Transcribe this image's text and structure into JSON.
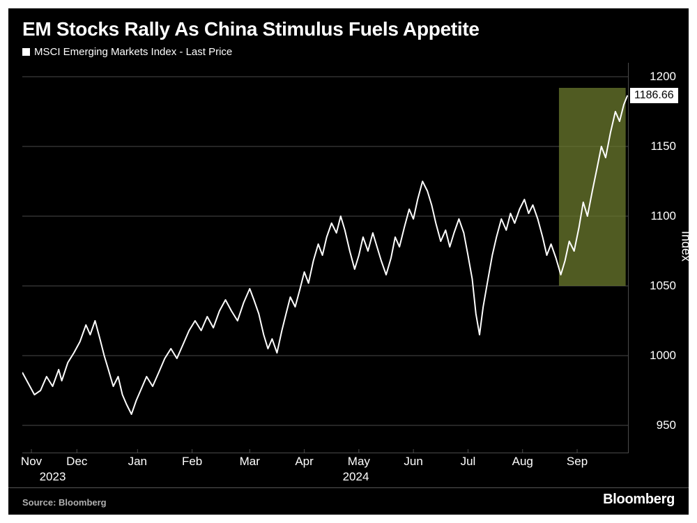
{
  "title": "EM Stocks Rally As China Stimulus Fuels Appetite",
  "legend_label": "MSCI Emerging Markets Index - Last Price",
  "source_label": "Source: Bloomberg",
  "brand_label": "Bloomberg",
  "y_axis_title": "Index",
  "last_price": "1186.66",
  "chart": {
    "type": "line",
    "background_color": "#000000",
    "line_color": "#ffffff",
    "line_width": 2,
    "grid_color": "#4a4a4a",
    "grid_width": 1,
    "highlight_fill": "#6b7a2e",
    "highlight_opacity": 0.75,
    "highlight_range": [
      0.885,
      0.995
    ],
    "highlight_y_range": [
      1050,
      1192
    ],
    "text_color": "#ffffff",
    "tick_fontsize": 17,
    "title_fontsize": 28,
    "ylim": [
      930,
      1210
    ],
    "yticks": [
      950,
      1000,
      1050,
      1100,
      1150,
      1200
    ],
    "x_tick_positions": [
      0.015,
      0.09,
      0.19,
      0.28,
      0.375,
      0.465,
      0.555,
      0.645,
      0.735,
      0.825,
      0.915
    ],
    "x_tick_labels": [
      "Nov",
      "Dec",
      "Jan",
      "Feb",
      "Mar",
      "Apr",
      "May",
      "Jun",
      "Jul",
      "Aug",
      "Sep"
    ],
    "x_year_positions": [
      0.05,
      0.55
    ],
    "x_year_labels": [
      "2023",
      "2024"
    ],
    "series": [
      {
        "x": 0.0,
        "y": 988
      },
      {
        "x": 0.01,
        "y": 980
      },
      {
        "x": 0.02,
        "y": 972
      },
      {
        "x": 0.03,
        "y": 975
      },
      {
        "x": 0.04,
        "y": 985
      },
      {
        "x": 0.05,
        "y": 978
      },
      {
        "x": 0.06,
        "y": 990
      },
      {
        "x": 0.065,
        "y": 982
      },
      {
        "x": 0.075,
        "y": 995
      },
      {
        "x": 0.085,
        "y": 1002
      },
      {
        "x": 0.095,
        "y": 1010
      },
      {
        "x": 0.105,
        "y": 1022
      },
      {
        "x": 0.112,
        "y": 1015
      },
      {
        "x": 0.12,
        "y": 1025
      },
      {
        "x": 0.128,
        "y": 1012
      },
      {
        "x": 0.135,
        "y": 1000
      },
      {
        "x": 0.142,
        "y": 990
      },
      {
        "x": 0.15,
        "y": 978
      },
      {
        "x": 0.158,
        "y": 985
      },
      {
        "x": 0.165,
        "y": 972
      },
      {
        "x": 0.172,
        "y": 965
      },
      {
        "x": 0.18,
        "y": 958
      },
      {
        "x": 0.188,
        "y": 968
      },
      {
        "x": 0.195,
        "y": 975
      },
      {
        "x": 0.205,
        "y": 985
      },
      {
        "x": 0.215,
        "y": 978
      },
      {
        "x": 0.225,
        "y": 988
      },
      {
        "x": 0.235,
        "y": 998
      },
      {
        "x": 0.245,
        "y": 1005
      },
      {
        "x": 0.255,
        "y": 998
      },
      {
        "x": 0.265,
        "y": 1008
      },
      {
        "x": 0.275,
        "y": 1018
      },
      {
        "x": 0.285,
        "y": 1025
      },
      {
        "x": 0.295,
        "y": 1018
      },
      {
        "x": 0.305,
        "y": 1028
      },
      {
        "x": 0.315,
        "y": 1020
      },
      {
        "x": 0.325,
        "y": 1032
      },
      {
        "x": 0.335,
        "y": 1040
      },
      {
        "x": 0.345,
        "y": 1032
      },
      {
        "x": 0.355,
        "y": 1025
      },
      {
        "x": 0.365,
        "y": 1038
      },
      {
        "x": 0.375,
        "y": 1048
      },
      {
        "x": 0.382,
        "y": 1040
      },
      {
        "x": 0.39,
        "y": 1030
      },
      {
        "x": 0.398,
        "y": 1015
      },
      {
        "x": 0.405,
        "y": 1005
      },
      {
        "x": 0.412,
        "y": 1012
      },
      {
        "x": 0.42,
        "y": 1002
      },
      {
        "x": 0.428,
        "y": 1018
      },
      {
        "x": 0.435,
        "y": 1030
      },
      {
        "x": 0.442,
        "y": 1042
      },
      {
        "x": 0.45,
        "y": 1035
      },
      {
        "x": 0.458,
        "y": 1048
      },
      {
        "x": 0.465,
        "y": 1060
      },
      {
        "x": 0.472,
        "y": 1052
      },
      {
        "x": 0.48,
        "y": 1068
      },
      {
        "x": 0.488,
        "y": 1080
      },
      {
        "x": 0.495,
        "y": 1072
      },
      {
        "x": 0.502,
        "y": 1085
      },
      {
        "x": 0.51,
        "y": 1095
      },
      {
        "x": 0.518,
        "y": 1088
      },
      {
        "x": 0.525,
        "y": 1100
      },
      {
        "x": 0.532,
        "y": 1090
      },
      {
        "x": 0.54,
        "y": 1075
      },
      {
        "x": 0.548,
        "y": 1062
      },
      {
        "x": 0.555,
        "y": 1072
      },
      {
        "x": 0.562,
        "y": 1085
      },
      {
        "x": 0.57,
        "y": 1075
      },
      {
        "x": 0.578,
        "y": 1088
      },
      {
        "x": 0.585,
        "y": 1078
      },
      {
        "x": 0.592,
        "y": 1068
      },
      {
        "x": 0.6,
        "y": 1058
      },
      {
        "x": 0.608,
        "y": 1070
      },
      {
        "x": 0.615,
        "y": 1085
      },
      {
        "x": 0.622,
        "y": 1078
      },
      {
        "x": 0.63,
        "y": 1092
      },
      {
        "x": 0.638,
        "y": 1105
      },
      {
        "x": 0.645,
        "y": 1098
      },
      {
        "x": 0.652,
        "y": 1112
      },
      {
        "x": 0.66,
        "y": 1125
      },
      {
        "x": 0.668,
        "y": 1118
      },
      {
        "x": 0.675,
        "y": 1108
      },
      {
        "x": 0.682,
        "y": 1095
      },
      {
        "x": 0.69,
        "y": 1082
      },
      {
        "x": 0.698,
        "y": 1090
      },
      {
        "x": 0.705,
        "y": 1078
      },
      {
        "x": 0.712,
        "y": 1088
      },
      {
        "x": 0.72,
        "y": 1098
      },
      {
        "x": 0.728,
        "y": 1088
      },
      {
        "x": 0.735,
        "y": 1072
      },
      {
        "x": 0.742,
        "y": 1055
      },
      {
        "x": 0.748,
        "y": 1030
      },
      {
        "x": 0.754,
        "y": 1015
      },
      {
        "x": 0.76,
        "y": 1035
      },
      {
        "x": 0.768,
        "y": 1055
      },
      {
        "x": 0.775,
        "y": 1072
      },
      {
        "x": 0.782,
        "y": 1085
      },
      {
        "x": 0.79,
        "y": 1098
      },
      {
        "x": 0.798,
        "y": 1090
      },
      {
        "x": 0.805,
        "y": 1102
      },
      {
        "x": 0.812,
        "y": 1095
      },
      {
        "x": 0.82,
        "y": 1105
      },
      {
        "x": 0.828,
        "y": 1112
      },
      {
        "x": 0.835,
        "y": 1102
      },
      {
        "x": 0.842,
        "y": 1108
      },
      {
        "x": 0.85,
        "y": 1098
      },
      {
        "x": 0.858,
        "y": 1085
      },
      {
        "x": 0.865,
        "y": 1072
      },
      {
        "x": 0.872,
        "y": 1080
      },
      {
        "x": 0.88,
        "y": 1070
      },
      {
        "x": 0.888,
        "y": 1058
      },
      {
        "x": 0.895,
        "y": 1068
      },
      {
        "x": 0.902,
        "y": 1082
      },
      {
        "x": 0.91,
        "y": 1075
      },
      {
        "x": 0.918,
        "y": 1092
      },
      {
        "x": 0.925,
        "y": 1110
      },
      {
        "x": 0.932,
        "y": 1100
      },
      {
        "x": 0.94,
        "y": 1118
      },
      {
        "x": 0.948,
        "y": 1135
      },
      {
        "x": 0.955,
        "y": 1150
      },
      {
        "x": 0.962,
        "y": 1142
      },
      {
        "x": 0.97,
        "y": 1160
      },
      {
        "x": 0.978,
        "y": 1175
      },
      {
        "x": 0.985,
        "y": 1168
      },
      {
        "x": 0.992,
        "y": 1180
      },
      {
        "x": 0.998,
        "y": 1186.66
      }
    ]
  }
}
